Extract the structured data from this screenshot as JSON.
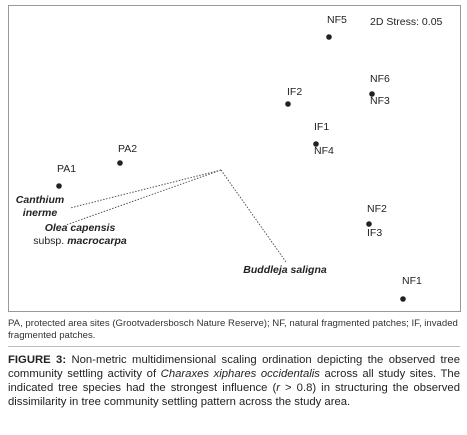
{
  "figure": {
    "stress": "2D Stress: 0.05",
    "points": [
      {
        "label": "NF5"
      },
      {
        "label": "NF6"
      },
      {
        "label": "NF3"
      },
      {
        "label": "IF2"
      },
      {
        "label": "IF1"
      },
      {
        "label": "NF4"
      },
      {
        "label": "PA2"
      },
      {
        "label": "PA1"
      },
      {
        "label": "NF2"
      },
      {
        "label": "IF3"
      },
      {
        "label": "NF1"
      }
    ],
    "species": [
      {
        "parts": [
          "Canthium",
          "inerme"
        ]
      },
      {
        "parts": [
          "Olea capensis",
          "subsp.",
          "macrocarpa"
        ]
      },
      {
        "parts": [
          "Buddleja saligna"
        ]
      }
    ]
  },
  "footnote": "PA, protected area sites (Grootvadersbosch Nature Reserve); NF, natural fragmented patches; IF, invaded fragmented patches.",
  "caption": {
    "label": "FIGURE 3:",
    "parts": [
      " Non-metric multidimensional scaling ordination depicting the observed tree community settling activity of ",
      "Charaxes xiphares occidentalis",
      " across all study sites. The indicated tree species had the strongest influence (",
      "r",
      " > 0.8) in structuring the observed dissimilarity in tree community settling pattern across the study area."
    ]
  }
}
